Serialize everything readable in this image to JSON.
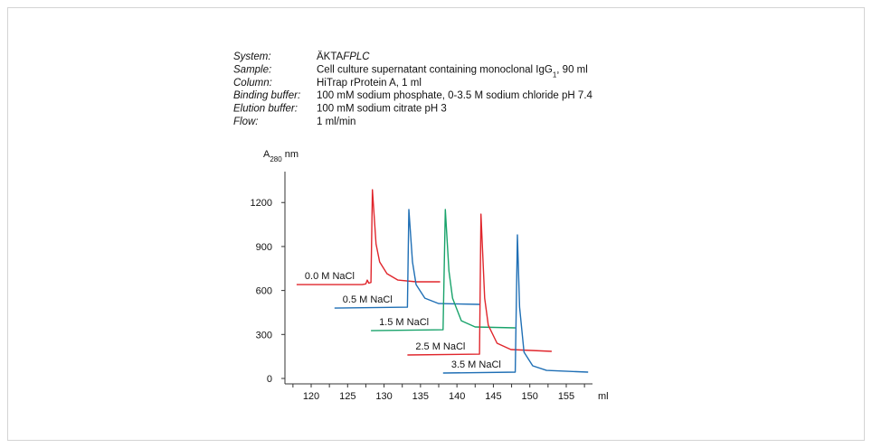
{
  "info": [
    {
      "label": "System:",
      "parts": [
        {
          "text": "ÄKTA"
        },
        {
          "text": "FPLC",
          "style": "italic"
        }
      ]
    },
    {
      "label": "Sample:",
      "parts": [
        {
          "text": "Cell culture supernatant containing monoclonal IgG"
        },
        {
          "text": "1",
          "style": "sub"
        },
        {
          "text": ", 90 ml"
        }
      ]
    },
    {
      "label": "Column:",
      "parts": [
        {
          "text": "HiTrap rProtein A, 1 ml"
        }
      ]
    },
    {
      "label": "Binding buffer:",
      "parts": [
        {
          "text": "100 mM sodium phosphate, 0-3.5 M sodium chloride pH 7.4"
        }
      ]
    },
    {
      "label": "Elution buffer:",
      "parts": [
        {
          "text": "100 mM sodium citrate pH 3"
        }
      ]
    },
    {
      "label": "Flow:",
      "parts": [
        {
          "text": "1 ml/min"
        }
      ]
    }
  ],
  "chart_data": {
    "type": "line",
    "y_label": [
      {
        "text": "A"
      },
      {
        "text": "280",
        "style": "sub"
      },
      {
        "text": "nm"
      }
    ],
    "x_label": "ml",
    "xlim": [
      116.4,
      158.6
    ],
    "xticks": [
      120,
      125,
      130,
      135,
      140,
      145,
      150,
      155
    ],
    "xminorticks": [
      117.5,
      122.5,
      127.5,
      132.5,
      137.5,
      142.5,
      147.5,
      152.5,
      157.5
    ],
    "ylim": [
      -37,
      1411
    ],
    "yticks": [
      0,
      300,
      600,
      900,
      1200
    ],
    "series": [
      {
        "name": "0.0 M NaCl",
        "color": "#e0262c",
        "x": [
          118.0,
          127.0,
          127.5,
          127.7,
          127.9,
          128.2,
          128.4,
          128.9,
          129.4,
          130.4,
          131.9,
          134.4,
          137.7
        ],
        "values": [
          640,
          640,
          645,
          671,
          650,
          655,
          1287,
          918,
          795,
          715,
          671,
          659,
          659
        ]
      },
      {
        "name": "0.5 M NaCl",
        "color": "#1f6fb5",
        "x": [
          123.2,
          133.2,
          133.4,
          133.9,
          134.4,
          135.6,
          137.5,
          143.1
        ],
        "values": [
          480,
          486,
          1152,
          795,
          640,
          548,
          511,
          505
        ]
      },
      {
        "name": "1.5 M NaCl",
        "color": "#19a36b",
        "x": [
          128.2,
          138.1,
          138.4,
          138.9,
          139.4,
          140.6,
          142.5,
          148.0
        ],
        "values": [
          326,
          332,
          1152,
          733,
          548,
          394,
          351,
          345
        ]
      },
      {
        "name": "2.5 M NaCl",
        "color": "#e0262c",
        "x": [
          133.2,
          143.1,
          143.3,
          143.8,
          144.3,
          145.5,
          147.4,
          153.0
        ],
        "values": [
          160,
          166,
          1121,
          548,
          363,
          240,
          197,
          185
        ]
      },
      {
        "name": "3.5 M NaCl",
        "color": "#1f6fb5",
        "x": [
          138.1,
          148.0,
          148.3,
          148.6,
          149.2,
          150.4,
          152.3,
          158.0
        ],
        "values": [
          37,
          43,
          979,
          487,
          179,
          86,
          55,
          43
        ]
      }
    ]
  }
}
